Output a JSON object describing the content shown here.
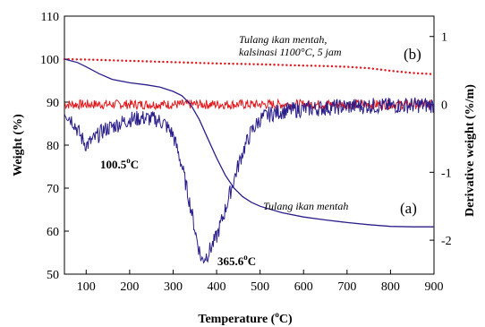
{
  "chart_data": {
    "type": "line",
    "xlabel": "Temperature",
    "xlabel_unit_pre": " (",
    "xlabel_unit_sup": "o",
    "xlabel_unit_post": "C)",
    "ylabel_left": "Weight (%)",
    "ylabel_right": "Derivative weight (%/m)",
    "xlim": [
      50,
      900
    ],
    "ylim_left": [
      50,
      110
    ],
    "ylim_right": [
      -2.5,
      1.3
    ],
    "x_ticks": [
      "100",
      "200",
      "300",
      "400",
      "500",
      "600",
      "700",
      "800",
      "900"
    ],
    "y_left_ticks": [
      "50",
      "60",
      "70",
      "80",
      "90",
      "100",
      "110"
    ],
    "y_right_ticks": [
      "-2",
      "-1",
      "0",
      "1"
    ],
    "colors": {
      "raw": "#2b1f8c",
      "calcined": "#e0181c"
    },
    "series": [
      {
        "name": "Tulang ikan mentah",
        "kind": "weight",
        "axis": "left",
        "style": "solid",
        "x": [
          50,
          80,
          100,
          130,
          160,
          200,
          240,
          270,
          300,
          320,
          340,
          360,
          380,
          400,
          420,
          440,
          460,
          480,
          500,
          550,
          600,
          650,
          700,
          750,
          800,
          850,
          900
        ],
        "y": [
          100,
          99.2,
          98.2,
          96.6,
          95.3,
          94.5,
          94.0,
          93.5,
          92.5,
          91.5,
          89.5,
          86.0,
          81.5,
          77.0,
          73.0,
          70.0,
          68.0,
          66.7,
          65.8,
          64.3,
          63.3,
          62.6,
          62.0,
          61.5,
          61.1,
          61.0,
          61.0
        ]
      },
      {
        "name": "Tulang ikan mentah",
        "kind": "derivative",
        "axis": "right",
        "style": "noisy",
        "x": [
          50,
          70,
          90,
          100.5,
          120,
          140,
          170,
          200,
          230,
          260,
          280,
          300,
          320,
          340,
          355,
          365.6,
          380,
          400,
          420,
          440,
          460,
          480,
          500,
          520,
          550,
          600,
          650,
          700,
          750,
          800,
          850,
          900
        ],
        "y": [
          -0.1,
          -0.25,
          -0.5,
          -0.6,
          -0.5,
          -0.38,
          -0.3,
          -0.22,
          -0.2,
          -0.22,
          -0.28,
          -0.45,
          -0.9,
          -1.5,
          -2.0,
          -2.3,
          -2.2,
          -1.95,
          -1.55,
          -1.1,
          -0.7,
          -0.4,
          -0.22,
          -0.15,
          -0.1,
          -0.07,
          -0.05,
          -0.03,
          -0.02,
          -0.02,
          -0.01,
          -0.01
        ]
      },
      {
        "name": "Tulang ikan mentah, kalsinasi 1100°C, 5 jam",
        "kind": "weight",
        "axis": "left",
        "style": "dotted",
        "x": [
          50,
          100,
          200,
          300,
          400,
          500,
          600,
          650,
          700,
          750,
          800,
          850,
          900
        ],
        "y": [
          100,
          99.9,
          99.6,
          99.3,
          99.0,
          98.8,
          98.5,
          98.4,
          98.2,
          97.9,
          97.3,
          96.8,
          96.5
        ]
      },
      {
        "name": "Tulang ikan mentah, kalsinasi 1100°C, 5 jam",
        "kind": "derivative",
        "axis": "right",
        "style": "noisy",
        "x": [
          50,
          900
        ],
        "y": [
          0,
          0
        ]
      }
    ],
    "annotations": [
      {
        "id": "peak1",
        "value": "100.5",
        "sup": "o",
        "unit": "C"
      },
      {
        "id": "peak2",
        "value": "365.6",
        "sup": "o",
        "unit": "C"
      },
      {
        "id": "label_a",
        "text": "(a)"
      },
      {
        "id": "label_b",
        "text": "(b)"
      },
      {
        "id": "curve_raw",
        "text": "Tulang ikan mentah"
      },
      {
        "id": "curve_calc_line1",
        "text": "Tulang ikan mentah,"
      },
      {
        "id": "curve_calc_line2",
        "text": "kalsinasi 1100°C, 5 jam"
      }
    ],
    "grid": false,
    "legend": "none"
  }
}
